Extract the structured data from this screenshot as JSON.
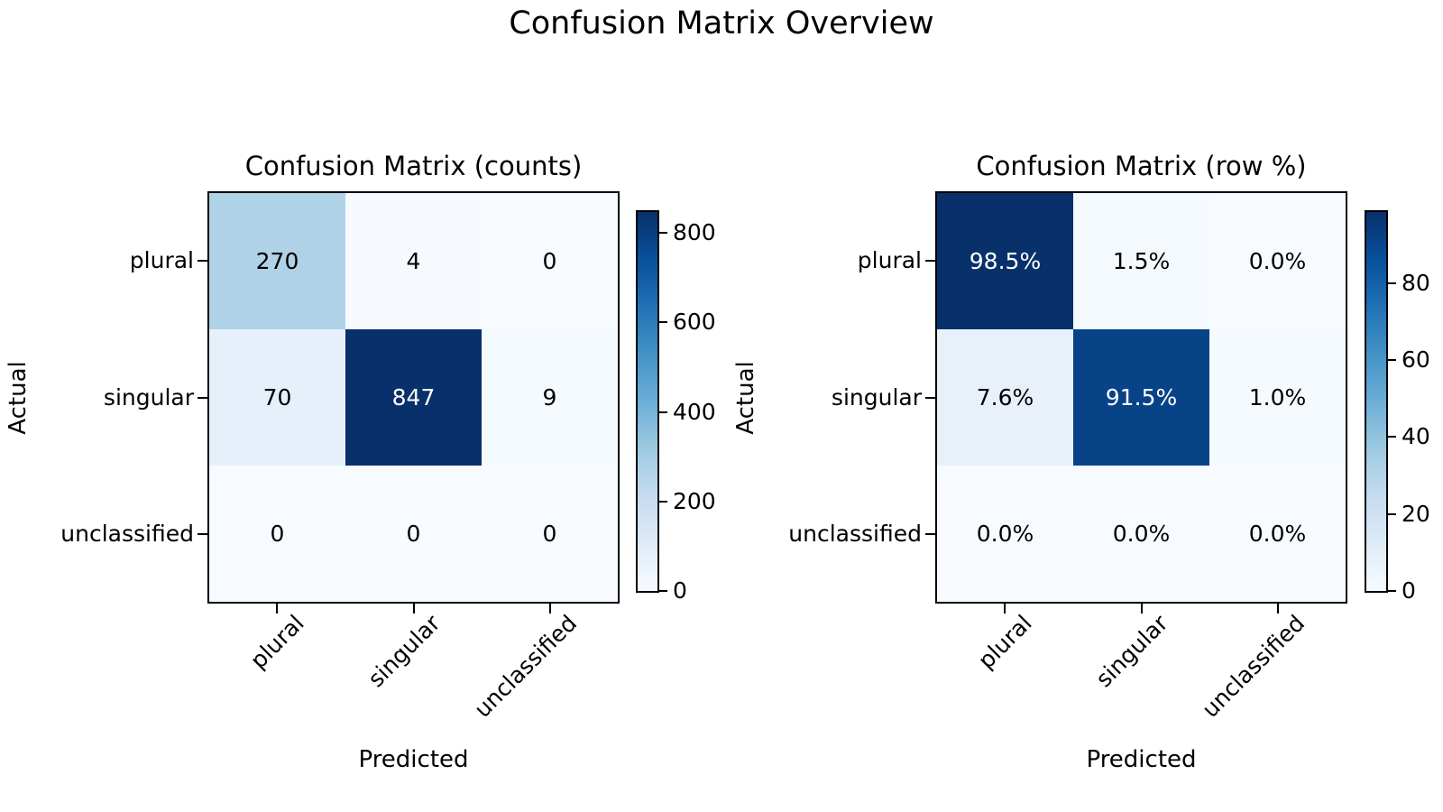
{
  "figure": {
    "suptitle": "Confusion Matrix Overview",
    "background_color": "#ffffff",
    "text_color": "#000000"
  },
  "colormap": {
    "name": "Blues",
    "stops": [
      "#f7fbff",
      "#deebf7",
      "#c6dbef",
      "#9ecae1",
      "#6baed6",
      "#4292c6",
      "#2171b5",
      "#08519c",
      "#08306b"
    ]
  },
  "chart_data": [
    {
      "type": "heatmap",
      "title": "Confusion Matrix (counts)",
      "xlabel": "Predicted",
      "ylabel": "Actual",
      "x_categories": [
        "plural",
        "singular",
        "unclassified"
      ],
      "y_categories": [
        "plural",
        "singular",
        "unclassified"
      ],
      "values": [
        [
          270,
          4,
          0
        ],
        [
          70,
          847,
          9
        ],
        [
          0,
          0,
          0
        ]
      ],
      "cell_labels": [
        [
          "270",
          "4",
          "0"
        ],
        [
          "70",
          "847",
          "9"
        ],
        [
          "0",
          "0",
          "0"
        ]
      ],
      "cell_colors": [
        [
          "#b0d2e7",
          "#f6faff",
          "#f7fbff"
        ],
        [
          "#e6f0fa",
          "#08306b",
          "#f5fafe"
        ],
        [
          "#f7fbff",
          "#f7fbff",
          "#f7fbff"
        ]
      ],
      "cell_text_colors": [
        [
          "#000000",
          "#000000",
          "#000000"
        ],
        [
          "#000000",
          "#ffffff",
          "#000000"
        ],
        [
          "#000000",
          "#000000",
          "#000000"
        ]
      ],
      "vmin": 0,
      "vmax": 847,
      "colorbar_ticks": [
        0,
        200,
        400,
        600,
        800
      ],
      "grid": false,
      "legend": "colorbar-right"
    },
    {
      "type": "heatmap",
      "title": "Confusion Matrix (row %)",
      "xlabel": "Predicted",
      "ylabel": "Actual",
      "x_categories": [
        "plural",
        "singular",
        "unclassified"
      ],
      "y_categories": [
        "plural",
        "singular",
        "unclassified"
      ],
      "values": [
        [
          98.5,
          1.5,
          0.0
        ],
        [
          7.6,
          91.5,
          1.0
        ],
        [
          0.0,
          0.0,
          0.0
        ]
      ],
      "cell_labels": [
        [
          "98.5%",
          "1.5%",
          "0.0%"
        ],
        [
          "7.6%",
          "91.5%",
          "1.0%"
        ],
        [
          "0.0%",
          "0.0%",
          "0.0%"
        ]
      ],
      "cell_colors": [
        [
          "#08306b",
          "#f4f9fe",
          "#f7fbff"
        ],
        [
          "#e8f1fa",
          "#084387",
          "#f5fafe"
        ],
        [
          "#f7fbff",
          "#f7fbff",
          "#f7fbff"
        ]
      ],
      "cell_text_colors": [
        [
          "#ffffff",
          "#000000",
          "#000000"
        ],
        [
          "#000000",
          "#ffffff",
          "#000000"
        ],
        [
          "#000000",
          "#000000",
          "#000000"
        ]
      ],
      "vmin": 0,
      "vmax": 98.5,
      "colorbar_ticks": [
        0,
        20,
        40,
        60,
        80
      ],
      "grid": false,
      "legend": "colorbar-right"
    }
  ]
}
